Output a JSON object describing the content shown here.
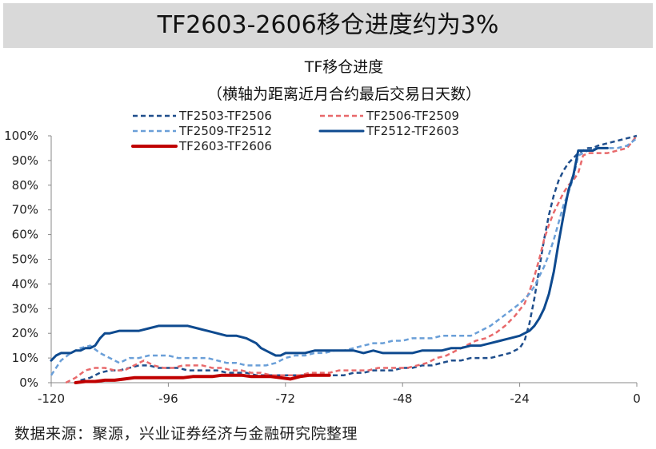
{
  "header": {
    "title": "TF2603-2606移仓进度约为3%"
  },
  "footer": {
    "source": "数据来源：聚源，兴业证券经济与金融研究院整理"
  },
  "chart_data": {
    "type": "line",
    "title": "TF移仓进度",
    "subtitle": "（横轴为距离近月合约最后交易日天数）",
    "xlabel": "",
    "ylabel": "",
    "xlim": [
      -120,
      0
    ],
    "ylim": [
      0,
      100
    ],
    "x_ticks": [
      -120,
      -96,
      -72,
      -48,
      -24,
      0
    ],
    "y_ticks": [
      0,
      10,
      20,
      30,
      40,
      50,
      60,
      70,
      80,
      90,
      100
    ],
    "y_tick_suffix": "%",
    "grid": false,
    "legend_position": "top",
    "series": [
      {
        "name": "TF2503-TF2506",
        "color": "#1f4e8c",
        "dash": "6,4",
        "width": 2.5,
        "x": [
          -114,
          -112,
          -110,
          -108,
          -106,
          -104,
          -102,
          -100,
          -98,
          -96,
          -94,
          -92,
          -90,
          -88,
          -86,
          -84,
          -82,
          -80,
          -78,
          -76,
          -74,
          -72,
          -70,
          -68,
          -66,
          -64,
          -62,
          -60,
          -58,
          -56,
          -54,
          -52,
          -50,
          -48,
          -46,
          -44,
          -42,
          -40,
          -38,
          -36,
          -34,
          -32,
          -30,
          -28,
          -26,
          -24,
          -23,
          -22,
          -21,
          -20,
          -19,
          -18,
          -17,
          -16,
          -15,
          -14,
          -13,
          -12,
          -11,
          -10,
          -9,
          -8,
          -6,
          -4,
          -2,
          0
        ],
        "y": [
          1,
          2,
          4,
          5,
          5,
          6,
          7,
          7,
          6,
          6,
          6,
          5,
          5,
          5,
          5,
          4,
          4,
          4,
          3,
          3,
          3,
          3,
          3,
          3,
          3,
          3,
          3,
          3,
          4,
          4,
          5,
          5,
          5,
          6,
          6,
          7,
          7,
          8,
          9,
          9,
          10,
          10,
          10,
          11,
          12,
          14,
          17,
          24,
          34,
          46,
          58,
          68,
          76,
          82,
          86,
          89,
          91,
          93,
          94,
          95,
          95,
          96,
          97,
          98,
          99,
          100
        ]
      },
      {
        "name": "TF2506-TF2509",
        "color": "#e8696b",
        "dash": "6,4",
        "width": 2.5,
        "x": [
          -117,
          -115,
          -113,
          -111,
          -109,
          -107,
          -105,
          -103,
          -101,
          -99,
          -97,
          -95,
          -93,
          -91,
          -89,
          -87,
          -85,
          -83,
          -81,
          -79,
          -77,
          -75,
          -73,
          -71,
          -69,
          -67,
          -65,
          -63,
          -61,
          -59,
          -57,
          -55,
          -53,
          -51,
          -49,
          -47,
          -45,
          -43,
          -41,
          -39,
          -37,
          -35,
          -33,
          -31,
          -29,
          -27,
          -25,
          -23,
          -22,
          -21,
          -20,
          -19,
          -18,
          -17,
          -16,
          -15,
          -14,
          -13,
          -12,
          -11,
          -10,
          -9,
          -8,
          -6,
          -4,
          -2,
          0
        ],
        "y": [
          0,
          2,
          5,
          6,
          6,
          5,
          5,
          7,
          9,
          7,
          6,
          6,
          7,
          7,
          7,
          6,
          6,
          5,
          5,
          4,
          4,
          3,
          3,
          3,
          3,
          4,
          4,
          4,
          5,
          5,
          5,
          5,
          6,
          6,
          6,
          6,
          7,
          8,
          10,
          11,
          13,
          15,
          17,
          18,
          20,
          23,
          27,
          32,
          37,
          43,
          50,
          58,
          64,
          69,
          73,
          77,
          80,
          82,
          85,
          92,
          93,
          93,
          93,
          93,
          94,
          95,
          100
        ]
      },
      {
        "name": "TF2509-TF2512",
        "color": "#6a9fd8",
        "dash": "6,4",
        "width": 2.5,
        "x": [
          -120,
          -118,
          -116,
          -114,
          -112,
          -110,
          -108,
          -106,
          -104,
          -102,
          -100,
          -98,
          -96,
          -94,
          -92,
          -90,
          -88,
          -86,
          -84,
          -82,
          -80,
          -78,
          -76,
          -74,
          -72,
          -70,
          -68,
          -66,
          -64,
          -62,
          -60,
          -58,
          -56,
          -54,
          -52,
          -50,
          -48,
          -46,
          -44,
          -42,
          -40,
          -38,
          -36,
          -34,
          -32,
          -30,
          -28,
          -26,
          -24,
          -23,
          -22,
          -21,
          -20,
          -19,
          -18,
          -17,
          -16,
          -15,
          -14,
          -13,
          -12,
          -10,
          -8,
          -6,
          -4,
          -2,
          0
        ],
        "y": [
          3,
          9,
          12,
          14,
          15,
          12,
          10,
          8,
          10,
          10,
          11,
          11,
          11,
          10,
          10,
          10,
          10,
          9,
          8,
          8,
          7,
          7,
          7,
          8,
          10,
          11,
          11,
          12,
          12,
          13,
          13,
          14,
          15,
          16,
          16,
          17,
          17,
          18,
          18,
          18,
          19,
          19,
          19,
          19,
          21,
          23,
          26,
          29,
          32,
          34,
          36,
          39,
          43,
          47,
          52,
          58,
          65,
          72,
          77,
          83,
          92,
          94,
          95,
          95,
          95,
          96,
          99
        ]
      },
      {
        "name": "TF2512-TF2603",
        "color": "#0e4a8f",
        "dash": "",
        "width": 3,
        "x": [
          -120,
          -119,
          -118,
          -117,
          -116,
          -115,
          -114,
          -113,
          -112,
          -111,
          -110,
          -109,
          -108,
          -106,
          -104,
          -102,
          -100,
          -98,
          -96,
          -94,
          -92,
          -90,
          -88,
          -86,
          -84,
          -82,
          -80,
          -78,
          -77,
          -76,
          -75,
          -74,
          -73,
          -72,
          -70,
          -68,
          -66,
          -64,
          -62,
          -60,
          -58,
          -56,
          -54,
          -52,
          -50,
          -48,
          -46,
          -44,
          -42,
          -40,
          -38,
          -36,
          -34,
          -32,
          -30,
          -28,
          -26,
          -24,
          -22,
          -21,
          -20,
          -19,
          -18,
          -17,
          -16,
          -15,
          -14,
          -13,
          -12,
          -11,
          -10,
          -9,
          -8,
          -7,
          -6
        ],
        "y": [
          9,
          11,
          12,
          12,
          12,
          13,
          13,
          14,
          14,
          15,
          18,
          20,
          20,
          21,
          21,
          21,
          22,
          23,
          23,
          23,
          23,
          22,
          21,
          20,
          19,
          19,
          18,
          16,
          14,
          13,
          12,
          11,
          11,
          12,
          12,
          12,
          13,
          13,
          13,
          13,
          13,
          12,
          13,
          12,
          12,
          12,
          12,
          13,
          13,
          13,
          14,
          14,
          15,
          15,
          16,
          17,
          18,
          19,
          21,
          23,
          26,
          30,
          36,
          45,
          57,
          68,
          78,
          84,
          94,
          94,
          94,
          94,
          95,
          95,
          95
        ]
      },
      {
        "name": "TF2603-TF2606",
        "color": "#c00000",
        "dash": "",
        "width": 4,
        "x": [
          -115,
          -113,
          -111,
          -109,
          -107,
          -105,
          -103,
          -101,
          -99,
          -97,
          -95,
          -93,
          -91,
          -89,
          -87,
          -85,
          -83,
          -81,
          -79,
          -77,
          -75,
          -73,
          -71,
          -69,
          -67,
          -65,
          -63
        ],
        "y": [
          0,
          0.5,
          0.5,
          1,
          1,
          1.5,
          2,
          2,
          2,
          2,
          2,
          2,
          2.5,
          2.5,
          2.5,
          3,
          3,
          3,
          2.5,
          2.5,
          2.5,
          2,
          1.5,
          2.5,
          3,
          3,
          3
        ]
      }
    ]
  }
}
